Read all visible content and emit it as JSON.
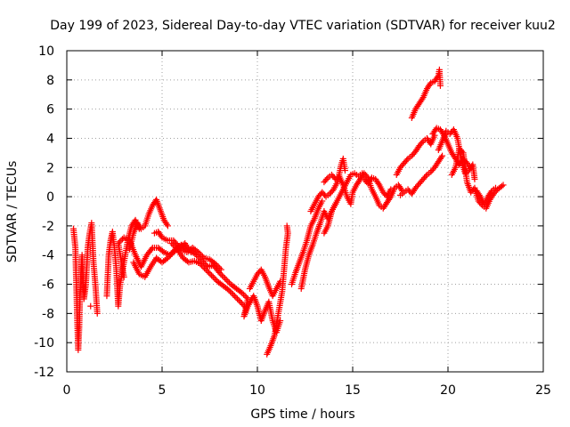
{
  "chart_data": {
    "type": "scatter",
    "title": "Day 199 of 2023, Sidereal Day-to-day VTEC variation (SDTVAR) for receiver kuu2",
    "xlabel": "GPS time / hours",
    "ylabel": "SDTVAR / TECUs",
    "xlim": [
      0,
      25
    ],
    "ylim": [
      -12,
      10
    ],
    "xticks": [
      0,
      5,
      10,
      15,
      20,
      25
    ],
    "yticks": [
      -12,
      -10,
      -8,
      -6,
      -4,
      -2,
      0,
      2,
      4,
      6,
      8,
      10
    ],
    "grid": true,
    "marker": "+",
    "color": "#ff0000",
    "series": [
      {
        "name": "SDTVAR",
        "points": [
          [
            0.35,
            -2.2
          ],
          [
            0.45,
            -3.5
          ],
          [
            0.5,
            -6.0
          ],
          [
            0.55,
            -8.5
          ],
          [
            0.6,
            -10.5
          ],
          [
            0.65,
            -9.0
          ],
          [
            0.7,
            -6.5
          ],
          [
            0.8,
            -4.0
          ],
          [
            0.9,
            -7.0
          ],
          [
            1.0,
            -6.0
          ],
          [
            1.1,
            -3.5
          ],
          [
            1.2,
            -2.5
          ],
          [
            1.3,
            -1.8
          ],
          [
            1.4,
            -4.5
          ],
          [
            1.5,
            -6.0
          ],
          [
            1.6,
            -8.0
          ],
          [
            1.25,
            -7.5
          ],
          [
            2.1,
            -6.8
          ],
          [
            2.2,
            -4.0
          ],
          [
            2.3,
            -3.0
          ],
          [
            2.4,
            -2.4
          ],
          [
            2.5,
            -3.5
          ],
          [
            2.6,
            -5.0
          ],
          [
            2.7,
            -7.5
          ],
          [
            2.8,
            -6.0
          ],
          [
            3.0,
            -4.5
          ],
          [
            3.2,
            -3.0
          ],
          [
            3.4,
            -2.0
          ],
          [
            3.6,
            -1.6
          ],
          [
            3.8,
            -2.2
          ],
          [
            3.0,
            -5.5
          ],
          [
            2.7,
            -3.2
          ],
          [
            3.0,
            -2.8
          ],
          [
            3.3,
            -3.0
          ],
          [
            3.6,
            -4.0
          ],
          [
            3.9,
            -4.8
          ],
          [
            4.2,
            -4.0
          ],
          [
            4.5,
            -3.5
          ],
          [
            4.8,
            -3.5
          ],
          [
            5.1,
            -3.8
          ],
          [
            5.4,
            -4.0
          ],
          [
            5.7,
            -3.6
          ],
          [
            6.0,
            -3.3
          ],
          [
            6.3,
            -3.6
          ],
          [
            3.5,
            -4.5
          ],
          [
            3.8,
            -5.3
          ],
          [
            4.1,
            -5.5
          ],
          [
            4.4,
            -4.8
          ],
          [
            4.7,
            -4.2
          ],
          [
            5.0,
            -4.5
          ],
          [
            5.3,
            -4.2
          ],
          [
            5.6,
            -3.8
          ],
          [
            5.9,
            -3.5
          ],
          [
            6.2,
            -3.2
          ],
          [
            6.5,
            -3.8
          ],
          [
            3.3,
            -3.6
          ],
          [
            3.5,
            -2.5
          ],
          [
            3.7,
            -1.8
          ],
          [
            3.9,
            -2.2
          ],
          [
            4.1,
            -2.0
          ],
          [
            4.3,
            -1.2
          ],
          [
            4.5,
            -0.6
          ],
          [
            4.7,
            -0.2
          ],
          [
            4.9,
            -0.9
          ],
          [
            5.1,
            -1.6
          ],
          [
            5.3,
            -2.0
          ],
          [
            4.6,
            -2.5
          ],
          [
            4.8,
            -2.4
          ],
          [
            5.0,
            -2.8
          ],
          [
            5.3,
            -3.0
          ],
          [
            5.6,
            -3.0
          ],
          [
            5.8,
            -3.3
          ],
          [
            6.0,
            -3.6
          ],
          [
            6.3,
            -3.8
          ],
          [
            6.6,
            -3.5
          ],
          [
            6.9,
            -3.8
          ],
          [
            7.2,
            -4.2
          ],
          [
            7.5,
            -4.3
          ],
          [
            7.8,
            -4.6
          ],
          [
            8.1,
            -5.0
          ],
          [
            5.5,
            -3.2
          ],
          [
            5.8,
            -3.6
          ],
          [
            6.1,
            -4.2
          ],
          [
            6.4,
            -4.5
          ],
          [
            6.7,
            -4.4
          ],
          [
            7.0,
            -4.6
          ],
          [
            7.3,
            -5.0
          ],
          [
            7.6,
            -5.4
          ],
          [
            7.9,
            -5.8
          ],
          [
            8.2,
            -6.1
          ],
          [
            8.5,
            -6.4
          ],
          [
            8.8,
            -6.8
          ],
          [
            9.1,
            -7.2
          ],
          [
            9.4,
            -7.6
          ],
          [
            6.5,
            -3.7
          ],
          [
            6.8,
            -4.0
          ],
          [
            7.1,
            -4.4
          ],
          [
            7.4,
            -4.8
          ],
          [
            7.7,
            -4.7
          ],
          [
            8.0,
            -5.2
          ],
          [
            8.3,
            -5.6
          ],
          [
            8.6,
            -6.0
          ],
          [
            8.9,
            -6.3
          ],
          [
            9.2,
            -6.6
          ],
          [
            9.5,
            -7.0
          ],
          [
            9.3,
            -8.2
          ],
          [
            9.5,
            -7.5
          ],
          [
            9.8,
            -6.8
          ],
          [
            10.0,
            -7.5
          ],
          [
            10.2,
            -8.5
          ],
          [
            10.4,
            -7.8
          ],
          [
            10.6,
            -7.2
          ],
          [
            10.8,
            -8.5
          ],
          [
            11.0,
            -9.3
          ],
          [
            11.2,
            -8.5
          ],
          [
            9.6,
            -6.3
          ],
          [
            9.8,
            -5.8
          ],
          [
            10.0,
            -5.3
          ],
          [
            10.2,
            -5.0
          ],
          [
            10.4,
            -5.5
          ],
          [
            10.6,
            -6.2
          ],
          [
            10.8,
            -6.8
          ],
          [
            11.0,
            -6.3
          ],
          [
            11.2,
            -5.8
          ],
          [
            10.5,
            -10.8
          ],
          [
            10.7,
            -10.2
          ],
          [
            10.9,
            -9.5
          ],
          [
            11.1,
            -8.0
          ],
          [
            11.3,
            -6.5
          ],
          [
            11.4,
            -5.0
          ],
          [
            11.5,
            -3.5
          ],
          [
            11.6,
            -2.5
          ],
          [
            11.55,
            -2.0
          ],
          [
            11.8,
            -6.0
          ],
          [
            12.0,
            -5.2
          ],
          [
            12.2,
            -4.5
          ],
          [
            12.4,
            -3.8
          ],
          [
            12.6,
            -3.0
          ],
          [
            12.8,
            -2.0
          ],
          [
            13.0,
            -1.5
          ],
          [
            13.2,
            -0.8
          ],
          [
            13.4,
            -0.3
          ],
          [
            12.3,
            -6.3
          ],
          [
            12.5,
            -5.0
          ],
          [
            12.7,
            -4.0
          ],
          [
            12.9,
            -3.3
          ],
          [
            13.1,
            -2.5
          ],
          [
            13.3,
            -1.8
          ],
          [
            13.5,
            -1.0
          ],
          [
            13.7,
            -1.5
          ],
          [
            13.9,
            -1.0
          ],
          [
            14.1,
            -0.5
          ],
          [
            12.8,
            -1.0
          ],
          [
            13.0,
            -0.5
          ],
          [
            13.2,
            0.0
          ],
          [
            13.4,
            0.3
          ],
          [
            13.6,
            0.0
          ],
          [
            13.8,
            0.2
          ],
          [
            14.0,
            0.5
          ],
          [
            14.2,
            1.0
          ],
          [
            14.4,
            2.2
          ],
          [
            14.5,
            2.6
          ],
          [
            14.6,
            1.8
          ],
          [
            13.5,
            -2.5
          ],
          [
            13.7,
            -2.0
          ],
          [
            13.9,
            -1.0
          ],
          [
            14.1,
            -0.5
          ],
          [
            14.3,
            0.0
          ],
          [
            14.5,
            0.5
          ],
          [
            14.7,
            1.0
          ],
          [
            14.9,
            1.5
          ],
          [
            15.1,
            1.6
          ],
          [
            15.3,
            1.4
          ],
          [
            15.5,
            1.6
          ],
          [
            13.5,
            1.0
          ],
          [
            13.7,
            1.3
          ],
          [
            13.9,
            1.5
          ],
          [
            14.1,
            1.2
          ],
          [
            14.3,
            1.4
          ],
          [
            14.5,
            0.8
          ],
          [
            14.7,
            0.0
          ],
          [
            14.9,
            -0.5
          ],
          [
            15.0,
            0.3
          ],
          [
            15.2,
            0.8
          ],
          [
            15.4,
            1.2
          ],
          [
            15.6,
            1.6
          ],
          [
            15.8,
            1.3
          ],
          [
            16.0,
            0.5
          ],
          [
            16.2,
            0.0
          ],
          [
            16.4,
            -0.6
          ],
          [
            16.6,
            -0.8
          ],
          [
            16.8,
            -0.4
          ],
          [
            17.0,
            0.0
          ],
          [
            17.2,
            0.6
          ],
          [
            17.4,
            0.8
          ],
          [
            17.6,
            0.4
          ],
          [
            15.6,
            1.2
          ],
          [
            15.8,
            0.9
          ],
          [
            16.0,
            1.3
          ],
          [
            16.2,
            1.2
          ],
          [
            16.4,
            0.8
          ],
          [
            16.6,
            0.3
          ],
          [
            16.8,
            0.0
          ],
          [
            17.0,
            0.5
          ],
          [
            17.5,
            0.1
          ],
          [
            17.7,
            0.3
          ],
          [
            17.9,
            0.5
          ],
          [
            18.1,
            0.2
          ],
          [
            18.3,
            0.6
          ],
          [
            18.5,
            0.9
          ],
          [
            18.7,
            1.2
          ],
          [
            18.9,
            1.5
          ],
          [
            19.1,
            1.7
          ],
          [
            19.3,
            2.0
          ],
          [
            19.5,
            2.4
          ],
          [
            19.7,
            2.8
          ],
          [
            17.3,
            1.5
          ],
          [
            17.5,
            2.0
          ],
          [
            17.7,
            2.3
          ],
          [
            17.9,
            2.6
          ],
          [
            18.1,
            2.8
          ],
          [
            18.3,
            3.1
          ],
          [
            18.5,
            3.5
          ],
          [
            18.7,
            3.8
          ],
          [
            18.9,
            4.0
          ],
          [
            19.1,
            3.6
          ],
          [
            19.3,
            4.2
          ],
          [
            18.1,
            5.4
          ],
          [
            18.3,
            6.0
          ],
          [
            18.5,
            6.4
          ],
          [
            18.7,
            6.8
          ],
          [
            18.9,
            7.4
          ],
          [
            19.1,
            7.8
          ],
          [
            19.3,
            7.9
          ],
          [
            19.5,
            8.3
          ],
          [
            19.55,
            8.7
          ],
          [
            19.6,
            7.6
          ],
          [
            19.2,
            4.3
          ],
          [
            19.4,
            4.7
          ],
          [
            19.6,
            4.6
          ],
          [
            19.8,
            4.2
          ],
          [
            20.0,
            3.6
          ],
          [
            20.2,
            3.0
          ],
          [
            20.4,
            2.6
          ],
          [
            20.6,
            2.2
          ],
          [
            20.8,
            2.6
          ],
          [
            21.0,
            2.3
          ],
          [
            21.2,
            2.0
          ],
          [
            19.5,
            3.2
          ],
          [
            19.7,
            3.8
          ],
          [
            19.9,
            4.5
          ],
          [
            20.1,
            4.3
          ],
          [
            20.3,
            4.6
          ],
          [
            20.5,
            4.0
          ],
          [
            20.7,
            2.5
          ],
          [
            20.9,
            1.6
          ],
          [
            21.1,
            1.8
          ],
          [
            21.3,
            2.2
          ],
          [
            21.4,
            1.2
          ],
          [
            20.2,
            1.5
          ],
          [
            20.4,
            2.0
          ],
          [
            20.6,
            3.3
          ],
          [
            20.8,
            3.0
          ],
          [
            21.0,
            1.0
          ],
          [
            21.2,
            0.3
          ],
          [
            21.4,
            0.6
          ],
          [
            21.6,
            -0.3
          ],
          [
            21.8,
            -0.6
          ],
          [
            22.0,
            -0.8
          ],
          [
            22.2,
            -0.2
          ],
          [
            22.4,
            0.2
          ],
          [
            22.6,
            0.5
          ],
          [
            22.9,
            0.8
          ],
          [
            21.5,
            0.4
          ],
          [
            21.7,
            0.0
          ],
          [
            21.9,
            -0.5
          ],
          [
            22.1,
            0.0
          ],
          [
            22.3,
            0.4
          ],
          [
            22.5,
            0.6
          ]
        ]
      }
    ]
  }
}
